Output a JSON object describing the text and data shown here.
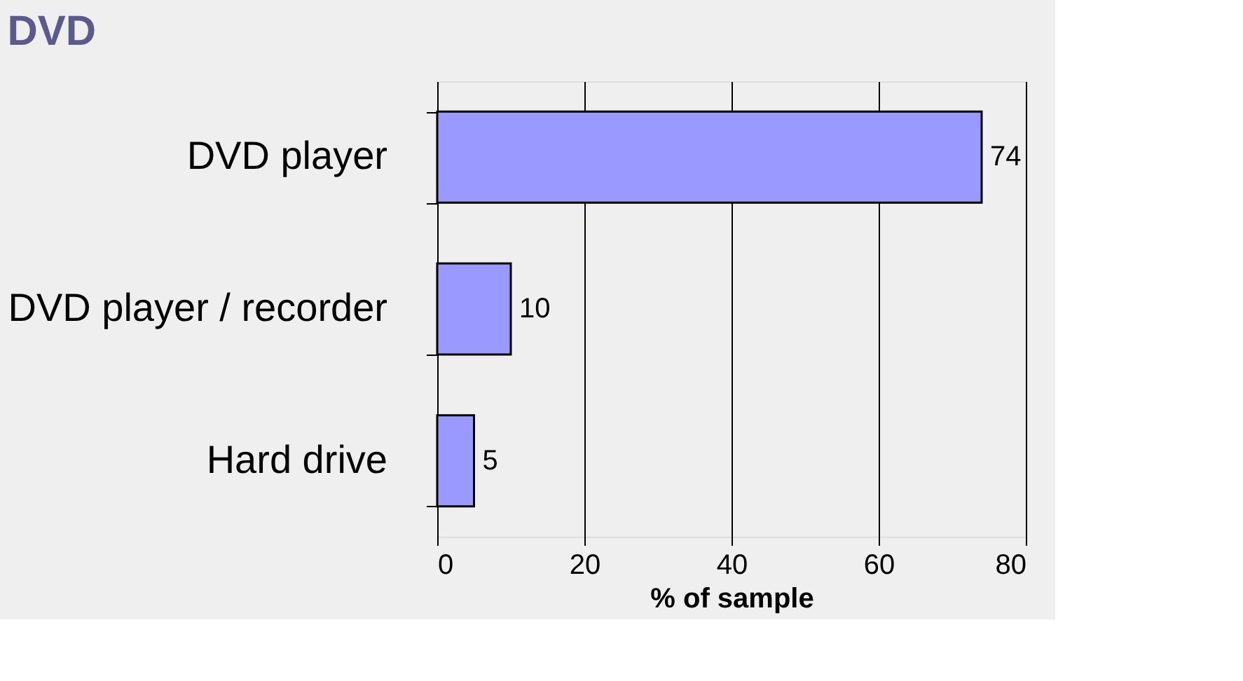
{
  "chart_data": {
    "type": "bar",
    "orientation": "horizontal",
    "title": "DVD",
    "xlabel": "% of sample",
    "categories": [
      "DVD player",
      "DVD player / recorder",
      "Hard drive"
    ],
    "values": [
      74,
      10,
      5
    ],
    "color": "#9999ff",
    "xlim": [
      0,
      80
    ],
    "xticks": [
      0,
      20,
      40,
      60,
      80
    ],
    "grid": "x",
    "data_labels": true
  }
}
